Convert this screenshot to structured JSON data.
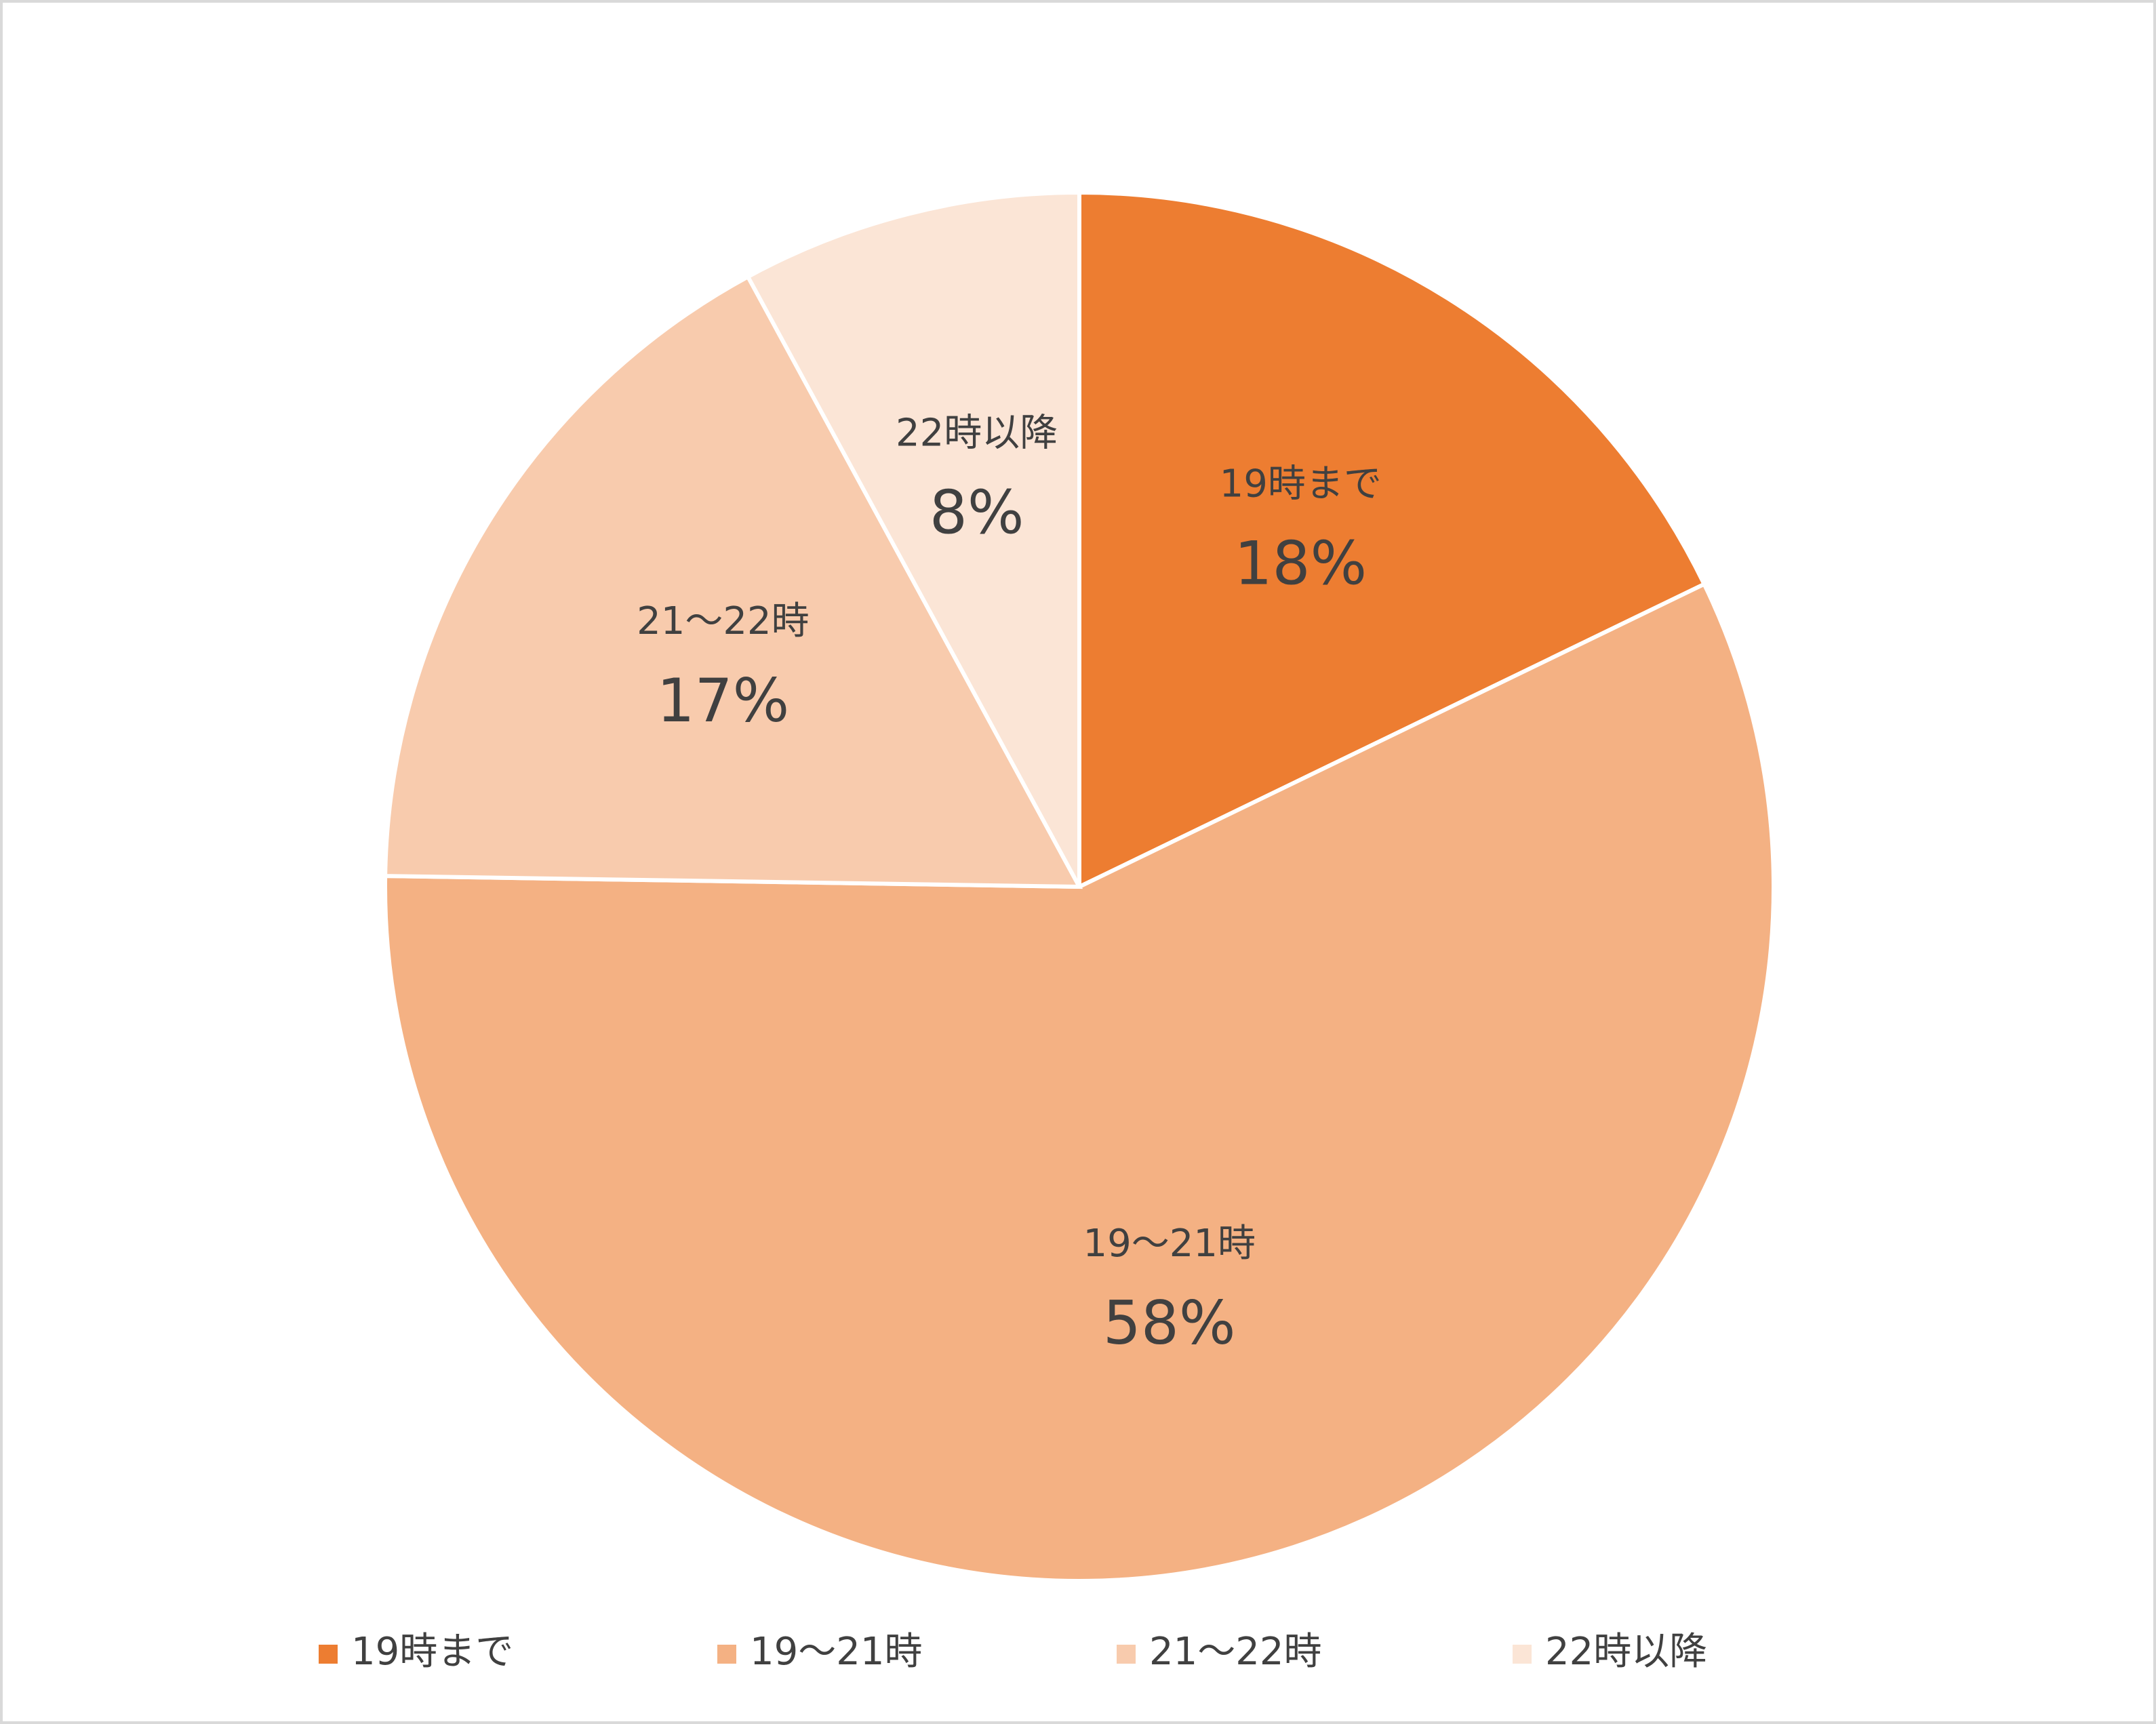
{
  "chart_data": {
    "type": "pie",
    "categories": [
      "19時まで",
      "19～21時",
      "21～22時",
      "22時以降"
    ],
    "values": [
      18,
      58,
      17,
      8
    ],
    "value_labels": [
      "18%",
      "58%",
      "17%",
      "8%"
    ],
    "colors": [
      "#ED7D31",
      "#F4B183",
      "#F8CBAD",
      "#FBE5D6"
    ],
    "legend": "bottom"
  }
}
